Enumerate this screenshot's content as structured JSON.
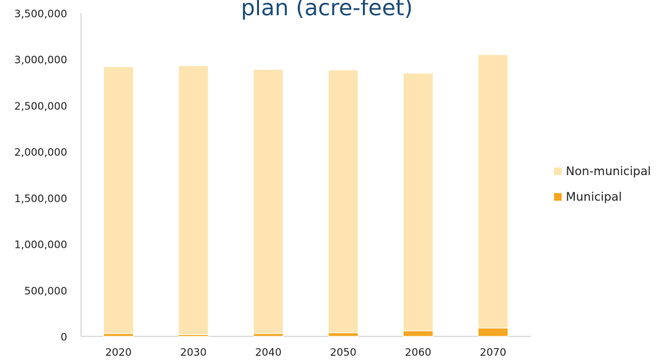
{
  "chart_data": {
    "type": "bar",
    "stacked": true,
    "title": "plan (acre-feet)",
    "categories": [
      "2020",
      "2030",
      "2040",
      "2050",
      "2060",
      "2070"
    ],
    "series": [
      {
        "name": "Municipal",
        "color": "#f5a623",
        "values": [
          30000,
          20000,
          30000,
          40000,
          60000,
          90000
        ]
      },
      {
        "name": "Non-municipal",
        "color": "#fde4b0",
        "values": [
          2890000,
          2910000,
          2860000,
          2845000,
          2790000,
          2960000
        ]
      }
    ],
    "ylim": [
      0,
      3500000
    ],
    "yticks": [
      "0",
      "500,000",
      "1,000,000",
      "1,500,000",
      "2,000,000",
      "2,500,000",
      "3,000,000",
      "3,500,000"
    ],
    "legend_position": "right",
    "legend_order": [
      "Non-municipal",
      "Municipal"
    ],
    "grid": false
  }
}
